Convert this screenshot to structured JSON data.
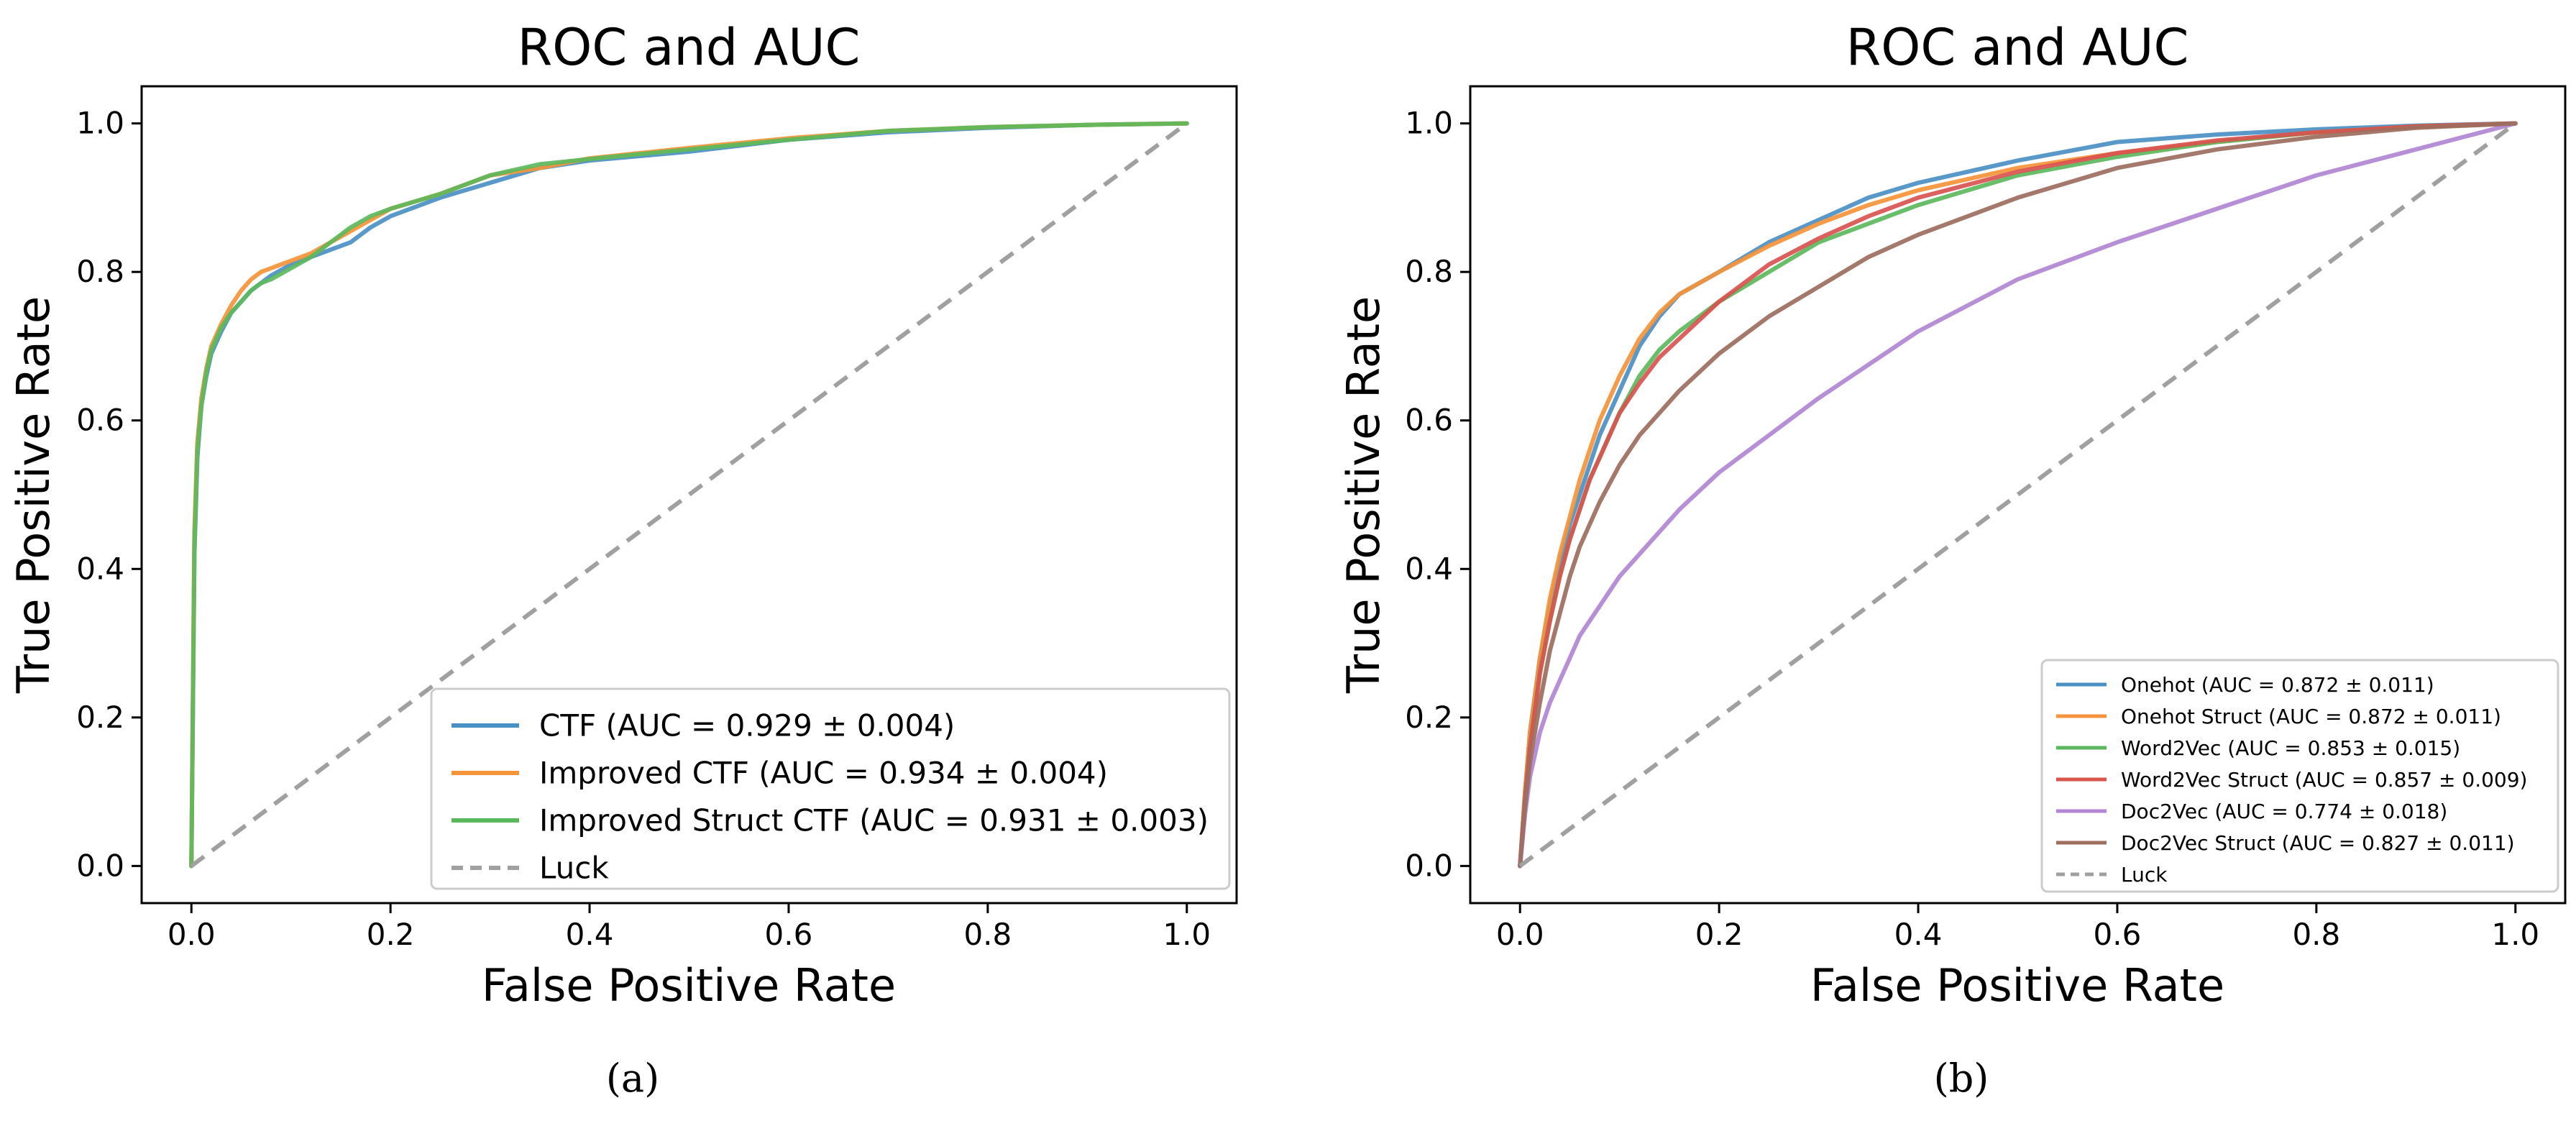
{
  "chart_data": [
    {
      "type": "line",
      "panel_label": "(a)",
      "title": "ROC and AUC",
      "xlabel": "False Positive Rate",
      "ylabel": "True Positive Rate",
      "xlim": [
        -0.05,
        1.05
      ],
      "ylim": [
        -0.05,
        1.05
      ],
      "xticks": [
        "0.0",
        "0.2",
        "0.4",
        "0.6",
        "0.8",
        "1.0"
      ],
      "yticks": [
        "0.0",
        "0.2",
        "0.4",
        "0.6",
        "0.8",
        "1.0"
      ],
      "legend_position": "lower-right",
      "series": [
        {
          "name": "CTF (AUC = 0.929 ± 0.004)",
          "color": "#4a90c4",
          "x": [
            0,
            0.003,
            0.006,
            0.01,
            0.015,
            0.02,
            0.03,
            0.04,
            0.05,
            0.06,
            0.07,
            0.08,
            0.1,
            0.12,
            0.14,
            0.16,
            0.18,
            0.2,
            0.25,
            0.3,
            0.35,
            0.4,
            0.5,
            0.6,
            0.7,
            0.8,
            0.9,
            1.0
          ],
          "y": [
            0,
            0.42,
            0.55,
            0.62,
            0.66,
            0.69,
            0.72,
            0.745,
            0.76,
            0.775,
            0.785,
            0.795,
            0.81,
            0.82,
            0.83,
            0.84,
            0.86,
            0.875,
            0.9,
            0.92,
            0.94,
            0.95,
            0.962,
            0.978,
            0.988,
            0.994,
            0.998,
            1.0
          ]
        },
        {
          "name": "Improved CTF (AUC = 0.934 ± 0.004)",
          "color": "#f5943a",
          "x": [
            0,
            0.003,
            0.006,
            0.01,
            0.015,
            0.02,
            0.03,
            0.04,
            0.05,
            0.06,
            0.07,
            0.08,
            0.1,
            0.12,
            0.14,
            0.16,
            0.18,
            0.2,
            0.25,
            0.3,
            0.35,
            0.4,
            0.5,
            0.6,
            0.7,
            0.8,
            0.9,
            1.0
          ],
          "y": [
            0,
            0.45,
            0.57,
            0.63,
            0.67,
            0.7,
            0.73,
            0.755,
            0.775,
            0.79,
            0.8,
            0.805,
            0.815,
            0.825,
            0.84,
            0.855,
            0.87,
            0.885,
            0.905,
            0.93,
            0.94,
            0.953,
            0.967,
            0.98,
            0.99,
            0.995,
            0.998,
            1.0
          ]
        },
        {
          "name": "Improved Struct CTF (AUC = 0.931 ± 0.003)",
          "color": "#5cb85c",
          "x": [
            0,
            0.003,
            0.006,
            0.01,
            0.015,
            0.02,
            0.03,
            0.04,
            0.05,
            0.06,
            0.07,
            0.08,
            0.1,
            0.12,
            0.14,
            0.16,
            0.18,
            0.2,
            0.25,
            0.3,
            0.35,
            0.4,
            0.5,
            0.6,
            0.7,
            0.8,
            0.9,
            1.0
          ],
          "y": [
            0,
            0.43,
            0.56,
            0.62,
            0.665,
            0.695,
            0.725,
            0.745,
            0.76,
            0.775,
            0.785,
            0.79,
            0.805,
            0.82,
            0.84,
            0.86,
            0.875,
            0.885,
            0.905,
            0.93,
            0.945,
            0.952,
            0.965,
            0.978,
            0.99,
            0.995,
            0.998,
            1.0
          ]
        },
        {
          "name": "Luck",
          "color": "#a0a0a0",
          "dashed": true,
          "x": [
            0,
            1
          ],
          "y": [
            0,
            1
          ]
        }
      ]
    },
    {
      "type": "line",
      "panel_label": "(b)",
      "title": "ROC and AUC",
      "xlabel": "False Positive Rate",
      "ylabel": "True Positive Rate",
      "xlim": [
        -0.05,
        1.05
      ],
      "ylim": [
        -0.05,
        1.05
      ],
      "xticks": [
        "0.0",
        "0.2",
        "0.4",
        "0.6",
        "0.8",
        "1.0"
      ],
      "yticks": [
        "0.0",
        "0.2",
        "0.4",
        "0.6",
        "0.8",
        "1.0"
      ],
      "legend_position": "lower-right",
      "series": [
        {
          "name": "Onehot (AUC = 0.872 ± 0.011)",
          "color": "#4a90c4",
          "x": [
            0,
            0.005,
            0.01,
            0.02,
            0.03,
            0.04,
            0.05,
            0.06,
            0.07,
            0.08,
            0.1,
            0.12,
            0.14,
            0.16,
            0.2,
            0.25,
            0.3,
            0.35,
            0.4,
            0.5,
            0.6,
            0.7,
            0.8,
            0.9,
            1.0
          ],
          "y": [
            0,
            0.1,
            0.18,
            0.28,
            0.35,
            0.41,
            0.46,
            0.5,
            0.54,
            0.58,
            0.64,
            0.7,
            0.74,
            0.77,
            0.8,
            0.84,
            0.87,
            0.9,
            0.92,
            0.95,
            0.975,
            0.985,
            0.992,
            0.997,
            1.0
          ]
        },
        {
          "name": "Onehot Struct (AUC = 0.872 ± 0.011)",
          "color": "#f5943a",
          "x": [
            0,
            0.005,
            0.01,
            0.02,
            0.03,
            0.04,
            0.05,
            0.06,
            0.07,
            0.08,
            0.1,
            0.12,
            0.14,
            0.16,
            0.2,
            0.25,
            0.3,
            0.35,
            0.4,
            0.5,
            0.6,
            0.7,
            0.8,
            0.9,
            1.0
          ],
          "y": [
            0,
            0.1,
            0.18,
            0.28,
            0.36,
            0.42,
            0.47,
            0.52,
            0.56,
            0.6,
            0.66,
            0.71,
            0.745,
            0.77,
            0.8,
            0.835,
            0.865,
            0.89,
            0.91,
            0.94,
            0.96,
            0.975,
            0.988,
            0.995,
            1.0
          ]
        },
        {
          "name": "Word2Vec (AUC = 0.853 ± 0.015)",
          "color": "#5cb85c",
          "x": [
            0,
            0.005,
            0.01,
            0.02,
            0.03,
            0.04,
            0.05,
            0.06,
            0.07,
            0.08,
            0.1,
            0.12,
            0.14,
            0.16,
            0.2,
            0.25,
            0.3,
            0.35,
            0.4,
            0.5,
            0.6,
            0.7,
            0.8,
            0.9,
            1.0
          ],
          "y": [
            0,
            0.09,
            0.16,
            0.26,
            0.33,
            0.39,
            0.44,
            0.48,
            0.52,
            0.55,
            0.61,
            0.66,
            0.695,
            0.72,
            0.76,
            0.8,
            0.84,
            0.865,
            0.89,
            0.93,
            0.955,
            0.975,
            0.988,
            0.996,
            1.0
          ]
        },
        {
          "name": "Word2Vec Struct (AUC = 0.857 ± 0.009)",
          "color": "#d9534f",
          "x": [
            0,
            0.005,
            0.01,
            0.02,
            0.03,
            0.04,
            0.05,
            0.06,
            0.07,
            0.08,
            0.1,
            0.12,
            0.14,
            0.16,
            0.2,
            0.25,
            0.3,
            0.35,
            0.4,
            0.5,
            0.6,
            0.7,
            0.8,
            0.9,
            1.0
          ],
          "y": [
            0,
            0.09,
            0.16,
            0.26,
            0.33,
            0.39,
            0.44,
            0.48,
            0.52,
            0.55,
            0.61,
            0.65,
            0.685,
            0.71,
            0.76,
            0.81,
            0.845,
            0.875,
            0.9,
            0.935,
            0.96,
            0.977,
            0.988,
            0.996,
            1.0
          ]
        },
        {
          "name": "Doc2Vec (AUC = 0.774 ± 0.018)",
          "color": "#b186d4",
          "x": [
            0,
            0.005,
            0.01,
            0.02,
            0.03,
            0.04,
            0.05,
            0.06,
            0.07,
            0.08,
            0.1,
            0.12,
            0.14,
            0.16,
            0.2,
            0.25,
            0.3,
            0.35,
            0.4,
            0.5,
            0.6,
            0.7,
            0.8,
            0.9,
            1.0
          ],
          "y": [
            0,
            0.07,
            0.12,
            0.18,
            0.22,
            0.25,
            0.28,
            0.31,
            0.33,
            0.35,
            0.39,
            0.42,
            0.45,
            0.48,
            0.53,
            0.58,
            0.63,
            0.675,
            0.72,
            0.79,
            0.84,
            0.885,
            0.93,
            0.965,
            1.0
          ]
        },
        {
          "name": "Doc2Vec Struct (AUC = 0.827 ± 0.011)",
          "color": "#9c6e5e",
          "x": [
            0,
            0.005,
            0.01,
            0.02,
            0.03,
            0.04,
            0.05,
            0.06,
            0.07,
            0.08,
            0.1,
            0.12,
            0.14,
            0.16,
            0.2,
            0.25,
            0.3,
            0.35,
            0.4,
            0.5,
            0.6,
            0.7,
            0.8,
            0.9,
            1.0
          ],
          "y": [
            0,
            0.08,
            0.14,
            0.22,
            0.29,
            0.34,
            0.39,
            0.43,
            0.46,
            0.49,
            0.54,
            0.58,
            0.61,
            0.64,
            0.69,
            0.74,
            0.78,
            0.82,
            0.85,
            0.9,
            0.94,
            0.965,
            0.982,
            0.994,
            1.0
          ]
        },
        {
          "name": "Luck",
          "color": "#a0a0a0",
          "dashed": true,
          "x": [
            0,
            1
          ],
          "y": [
            0,
            1
          ]
        }
      ]
    }
  ]
}
